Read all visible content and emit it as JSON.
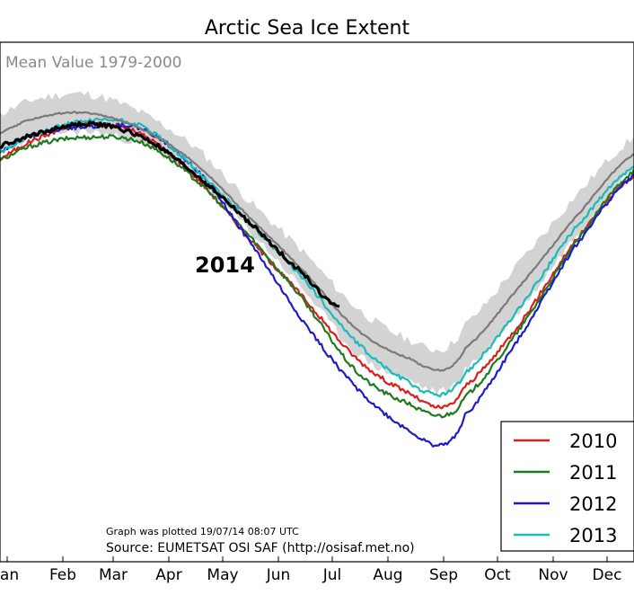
{
  "chart_data": {
    "type": "line",
    "title": "Arctic Sea Ice Extent",
    "mean_label": "Mean Value 1979-2000",
    "highlight_label": "2014",
    "plot_note": "Graph was plotted 19/07/14 08:07 UTC",
    "source": "Source: EUMETSAT OSI SAF (http://osisaf.met.no)",
    "x_ticks": [
      "Jan",
      "Feb",
      "Mar",
      "Apr",
      "May",
      "Jun",
      "Jul",
      "Aug",
      "Sep",
      "Oct",
      "Nov",
      "Dec"
    ],
    "legend_position": "lower-right",
    "grid": false,
    "band": {
      "color": "#d3d3d3",
      "x": [
        1,
        30,
        60,
        90,
        120,
        150,
        180,
        210,
        240,
        258,
        270,
        300,
        330,
        365
      ],
      "upper": [
        14.6,
        15.4,
        15.6,
        14.9,
        13.6,
        11.6,
        9.7,
        7.6,
        6.4,
        6.1,
        7.0,
        9.3,
        11.7,
        14.0
      ],
      "lower": [
        13.1,
        14.0,
        14.2,
        13.7,
        12.5,
        10.5,
        8.3,
        5.9,
        4.9,
        4.5,
        5.3,
        7.5,
        10.2,
        12.8
      ]
    },
    "series": [
      {
        "name": "",
        "role": "mean",
        "color": "#7a7a7a",
        "x": [
          1,
          30,
          60,
          90,
          120,
          150,
          180,
          210,
          240,
          258,
          270,
          300,
          330,
          365
        ],
        "values": [
          13.9,
          14.7,
          14.9,
          14.3,
          13.0,
          11.0,
          9.0,
          6.8,
          5.7,
          5.3,
          6.1,
          8.4,
          10.9,
          13.4
        ]
      },
      {
        "name": "2010",
        "role": "year",
        "color": "#dd1c1c",
        "x": [
          1,
          30,
          60,
          90,
          120,
          150,
          180,
          210,
          240,
          258,
          270,
          300,
          330,
          365
        ],
        "values": [
          12.9,
          13.9,
          14.5,
          14.1,
          12.5,
          10.2,
          8.0,
          5.7,
          4.4,
          3.9,
          4.7,
          7.0,
          10.0,
          12.6
        ]
      },
      {
        "name": "2011",
        "role": "year",
        "color": "#1d7a1d",
        "x": [
          1,
          30,
          60,
          90,
          120,
          150,
          180,
          210,
          240,
          258,
          270,
          300,
          330,
          365
        ],
        "values": [
          12.9,
          13.7,
          14.0,
          13.8,
          12.4,
          10.3,
          7.9,
          5.2,
          4.0,
          3.6,
          4.3,
          6.8,
          9.9,
          12.8
        ]
      },
      {
        "name": "2012",
        "role": "year",
        "color": "#1c1cc8",
        "x": [
          1,
          30,
          60,
          90,
          120,
          150,
          180,
          210,
          240,
          258,
          270,
          300,
          330,
          365
        ],
        "values": [
          13.2,
          14.1,
          14.4,
          14.3,
          12.8,
          10.1,
          7.1,
          4.6,
          3.0,
          2.5,
          3.6,
          6.5,
          9.8,
          12.6
        ]
      },
      {
        "name": "2013",
        "role": "year",
        "color": "#18bcbc",
        "x": [
          1,
          30,
          60,
          90,
          120,
          150,
          180,
          210,
          240,
          258,
          270,
          300,
          330,
          365
        ],
        "values": [
          13.1,
          14.1,
          14.6,
          14.4,
          12.8,
          10.8,
          8.7,
          6.3,
          4.8,
          4.4,
          5.2,
          7.6,
          10.5,
          12.9
        ]
      },
      {
        "name": "2014",
        "role": "highlight",
        "color": "#000000",
        "x": [
          1,
          30,
          60,
          90,
          120,
          150,
          180,
          200
        ],
        "values": [
          13.5,
          14.1,
          14.5,
          14.0,
          12.6,
          10.8,
          8.9,
          7.6
        ]
      }
    ]
  }
}
